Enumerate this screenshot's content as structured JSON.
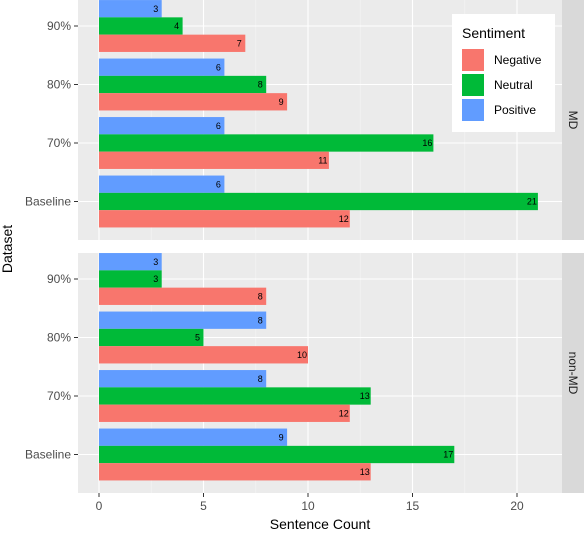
{
  "chart_data": {
    "type": "bar",
    "orientation": "horizontal",
    "xlabel": "Sentence Count",
    "ylabel": "Dataset",
    "xlim": [
      0,
      21.5
    ],
    "x_ticks": [
      0,
      5,
      10,
      15,
      20
    ],
    "categories": [
      "90%",
      "80%",
      "70%",
      "Baseline"
    ],
    "legend": {
      "title": "Sentiment",
      "position": "top-right",
      "entries": [
        {
          "name": "Negative",
          "color": "#f8766d"
        },
        {
          "name": "Neutral",
          "color": "#00ba38"
        },
        {
          "name": "Positive",
          "color": "#619cff"
        }
      ]
    },
    "panels": [
      {
        "label": "MD",
        "series": [
          {
            "name": "Positive",
            "values": [
              3,
              6,
              6,
              6
            ]
          },
          {
            "name": "Neutral",
            "values": [
              4,
              8,
              16,
              21
            ]
          },
          {
            "name": "Negative",
            "values": [
              7,
              9,
              11,
              12
            ]
          }
        ]
      },
      {
        "label": "non-MD",
        "series": [
          {
            "name": "Positive",
            "values": [
              3,
              8,
              8,
              9
            ]
          },
          {
            "name": "Neutral",
            "values": [
              3,
              5,
              13,
              17
            ]
          },
          {
            "name": "Negative",
            "values": [
              8,
              10,
              12,
              13
            ]
          }
        ]
      }
    ]
  }
}
